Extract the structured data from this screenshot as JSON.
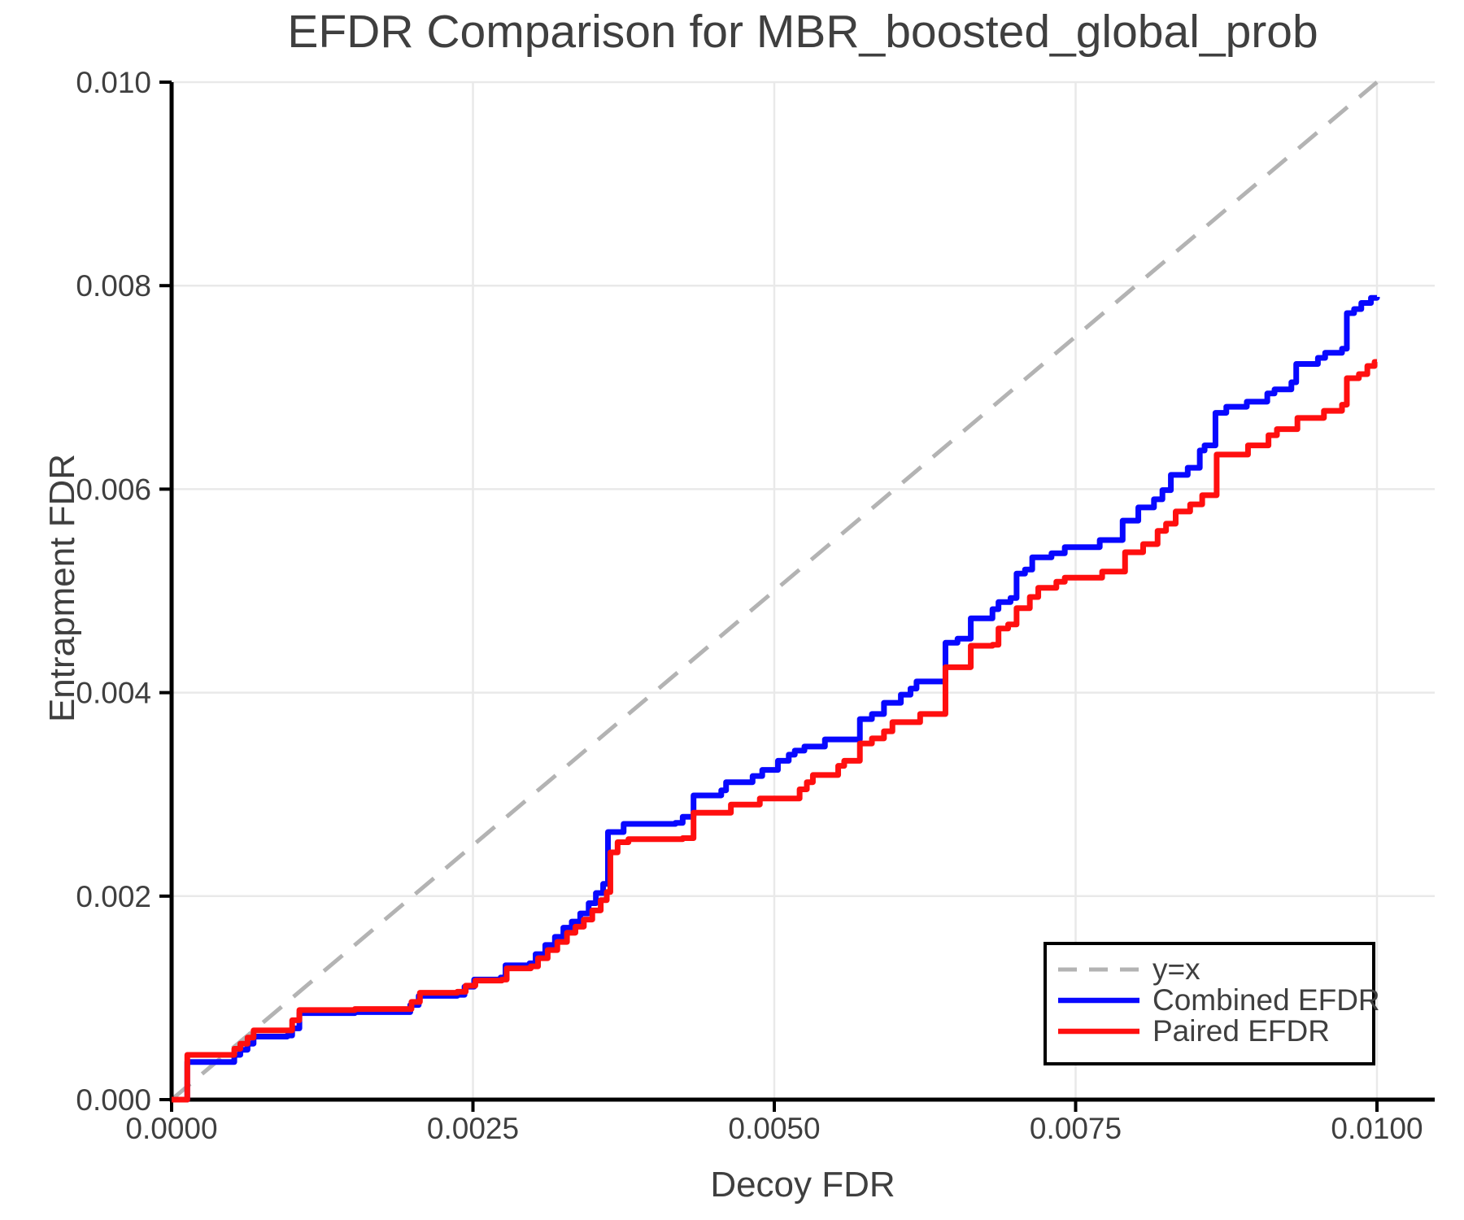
{
  "page": {
    "background": "#ffffff"
  },
  "chart_data": {
    "type": "line",
    "title": "EFDR Comparison for MBR_boosted_global_prob",
    "xlabel": "Decoy FDR",
    "ylabel": "Entrapment FDR",
    "xlim": [
      0,
      0.01048
    ],
    "ylim": [
      0,
      0.01
    ],
    "grid": true,
    "xticks": {
      "values": [
        0.0,
        0.0025,
        0.005,
        0.0075,
        0.01
      ],
      "labels": [
        "0.0000",
        "0.0025",
        "0.0050",
        "0.0075",
        "0.0100"
      ]
    },
    "yticks": {
      "values": [
        0.0,
        0.002,
        0.004,
        0.006,
        0.008,
        0.01
      ],
      "labels": [
        "0.000",
        "0.002",
        "0.004",
        "0.006",
        "0.008",
        "0.010"
      ]
    },
    "style": {
      "text_color": "#3f3f3f",
      "spine_color": "#000000",
      "grid_color": "#e9e9e9",
      "background": "#ffffff"
    },
    "legend": {
      "position": "lower right",
      "entries": [
        {
          "label": "y=x",
          "color": "#b3b3b3",
          "style": "dashed"
        },
        {
          "label": "Combined EFDR",
          "color": "#0808ff",
          "style": "solid"
        },
        {
          "label": "Paired EFDR",
          "color": "#ff0f0f",
          "style": "solid"
        }
      ]
    },
    "reference_line": {
      "label": "y=x",
      "from": [
        0,
        0
      ],
      "to": [
        0.01,
        0.01
      ],
      "color": "#b3b3b3",
      "dashed": true
    },
    "series": [
      {
        "name": "Combined EFDR",
        "color": "#0808ff",
        "step": "post",
        "points": [
          [
            0.0,
            0.0
          ],
          [
            0.00013,
            0.00037
          ],
          [
            0.00049,
            0.00037
          ],
          [
            0.00052,
            0.00044
          ],
          [
            0.00057,
            0.00049
          ],
          [
            0.00063,
            0.00055
          ],
          [
            0.00068,
            0.00062
          ],
          [
            0.00096,
            0.00063
          ],
          [
            0.001,
            0.0007
          ],
          [
            0.00106,
            0.00085
          ],
          [
            0.00152,
            0.00086
          ],
          [
            0.00196,
            0.00086
          ],
          [
            0.00198,
            0.00093
          ],
          [
            0.00205,
            0.00102
          ],
          [
            0.00237,
            0.00103
          ],
          [
            0.00243,
            0.00111
          ],
          [
            0.00251,
            0.00118
          ],
          [
            0.00273,
            0.0012
          ],
          [
            0.00277,
            0.00132
          ],
          [
            0.00297,
            0.00134
          ],
          [
            0.00302,
            0.00143
          ],
          [
            0.0031,
            0.00152
          ],
          [
            0.00318,
            0.0016
          ],
          [
            0.00325,
            0.00169
          ],
          [
            0.00332,
            0.00175
          ],
          [
            0.00339,
            0.00183
          ],
          [
            0.00346,
            0.00193
          ],
          [
            0.00352,
            0.00203
          ],
          [
            0.00358,
            0.00212
          ],
          [
            0.00362,
            0.00263
          ],
          [
            0.00375,
            0.00271
          ],
          [
            0.00418,
            0.00272
          ],
          [
            0.00424,
            0.00278
          ],
          [
            0.00433,
            0.00299
          ],
          [
            0.00456,
            0.00304
          ],
          [
            0.0046,
            0.00312
          ],
          [
            0.00482,
            0.00318
          ],
          [
            0.0049,
            0.00324
          ],
          [
            0.00503,
            0.00333
          ],
          [
            0.00512,
            0.00339
          ],
          [
            0.00517,
            0.00343
          ],
          [
            0.00525,
            0.00347
          ],
          [
            0.00542,
            0.00354
          ],
          [
            0.00571,
            0.00374
          ],
          [
            0.00581,
            0.00379
          ],
          [
            0.00591,
            0.0039
          ],
          [
            0.00605,
            0.00398
          ],
          [
            0.00613,
            0.00404
          ],
          [
            0.00618,
            0.00411
          ],
          [
            0.00642,
            0.00449
          ],
          [
            0.00652,
            0.00453
          ],
          [
            0.00663,
            0.00473
          ],
          [
            0.00681,
            0.00482
          ],
          [
            0.00686,
            0.00489
          ],
          [
            0.00696,
            0.00493
          ],
          [
            0.00701,
            0.00517
          ],
          [
            0.00708,
            0.00521
          ],
          [
            0.00714,
            0.00533
          ],
          [
            0.0073,
            0.00537
          ],
          [
            0.00741,
            0.00543
          ],
          [
            0.0077,
            0.0055
          ],
          [
            0.00789,
            0.00569
          ],
          [
            0.00802,
            0.00582
          ],
          [
            0.00815,
            0.0059
          ],
          [
            0.00822,
            0.00599
          ],
          [
            0.00829,
            0.00614
          ],
          [
            0.00843,
            0.00621
          ],
          [
            0.00853,
            0.00638
          ],
          [
            0.00857,
            0.00643
          ],
          [
            0.00866,
            0.00675
          ],
          [
            0.00875,
            0.00681
          ],
          [
            0.00892,
            0.00686
          ],
          [
            0.00909,
            0.00694
          ],
          [
            0.00915,
            0.00698
          ],
          [
            0.00929,
            0.00705
          ],
          [
            0.00933,
            0.00723
          ],
          [
            0.00951,
            0.00729
          ],
          [
            0.00957,
            0.00734
          ],
          [
            0.00971,
            0.00738
          ],
          [
            0.00975,
            0.00773
          ],
          [
            0.00981,
            0.00777
          ],
          [
            0.00987,
            0.00783
          ],
          [
            0.00995,
            0.00788
          ],
          [
            0.01,
            0.00789
          ]
        ]
      },
      {
        "name": "Paired EFDR",
        "color": "#ff0f0f",
        "step": "post",
        "points": [
          [
            0.0,
            0.0
          ],
          [
            0.00013,
            0.00044
          ],
          [
            0.00049,
            0.00044
          ],
          [
            0.00052,
            0.0005
          ],
          [
            0.00057,
            0.00055
          ],
          [
            0.00063,
            0.00061
          ],
          [
            0.00068,
            0.00068
          ],
          [
            0.00096,
            0.00068
          ],
          [
            0.001,
            0.00078
          ],
          [
            0.00106,
            0.00088
          ],
          [
            0.00152,
            0.00089
          ],
          [
            0.00196,
            0.00089
          ],
          [
            0.00199,
            0.00096
          ],
          [
            0.00206,
            0.00105
          ],
          [
            0.00237,
            0.00106
          ],
          [
            0.00244,
            0.00112
          ],
          [
            0.00252,
            0.00117
          ],
          [
            0.00274,
            0.00118
          ],
          [
            0.00278,
            0.00129
          ],
          [
            0.00298,
            0.00131
          ],
          [
            0.00304,
            0.00139
          ],
          [
            0.00312,
            0.00147
          ],
          [
            0.0032,
            0.00155
          ],
          [
            0.00328,
            0.00164
          ],
          [
            0.00335,
            0.0017
          ],
          [
            0.00342,
            0.00177
          ],
          [
            0.00349,
            0.00186
          ],
          [
            0.00356,
            0.00196
          ],
          [
            0.00361,
            0.00204
          ],
          [
            0.00364,
            0.00243
          ],
          [
            0.0037,
            0.00253
          ],
          [
            0.00379,
            0.00256
          ],
          [
            0.00424,
            0.00257
          ],
          [
            0.00433,
            0.00282
          ],
          [
            0.00464,
            0.0029
          ],
          [
            0.00488,
            0.00296
          ],
          [
            0.00521,
            0.00305
          ],
          [
            0.00527,
            0.00312
          ],
          [
            0.00532,
            0.00319
          ],
          [
            0.00553,
            0.00328
          ],
          [
            0.00558,
            0.00333
          ],
          [
            0.00571,
            0.0035
          ],
          [
            0.00581,
            0.00355
          ],
          [
            0.00591,
            0.00362
          ],
          [
            0.00598,
            0.00371
          ],
          [
            0.00621,
            0.00379
          ],
          [
            0.00642,
            0.00425
          ],
          [
            0.00663,
            0.00446
          ],
          [
            0.00681,
            0.00447
          ],
          [
            0.00686,
            0.00463
          ],
          [
            0.00694,
            0.00467
          ],
          [
            0.00701,
            0.00483
          ],
          [
            0.00712,
            0.00494
          ],
          [
            0.00719,
            0.00503
          ],
          [
            0.00734,
            0.00509
          ],
          [
            0.00741,
            0.00513
          ],
          [
            0.00772,
            0.00519
          ],
          [
            0.00791,
            0.00538
          ],
          [
            0.00806,
            0.00546
          ],
          [
            0.00818,
            0.00559
          ],
          [
            0.00825,
            0.00566
          ],
          [
            0.00833,
            0.00578
          ],
          [
            0.00845,
            0.00585
          ],
          [
            0.00855,
            0.00594
          ],
          [
            0.00867,
            0.00634
          ],
          [
            0.00893,
            0.00643
          ],
          [
            0.0091,
            0.00653
          ],
          [
            0.00917,
            0.00659
          ],
          [
            0.00934,
            0.0067
          ],
          [
            0.00956,
            0.00677
          ],
          [
            0.00971,
            0.00683
          ],
          [
            0.00975,
            0.00709
          ],
          [
            0.00985,
            0.00713
          ],
          [
            0.00992,
            0.00721
          ],
          [
            0.00998,
            0.00725
          ],
          [
            0.01,
            0.00725
          ]
        ]
      }
    ]
  }
}
